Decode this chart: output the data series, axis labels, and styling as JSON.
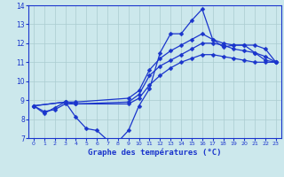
{
  "title": "Graphe des températures (°C)",
  "background_color": "#cce8ec",
  "grid_color": "#aaccd0",
  "line_color": "#1a35cc",
  "xlim": [
    -0.5,
    23.5
  ],
  "ylim": [
    7,
    14
  ],
  "xticks": [
    0,
    1,
    2,
    3,
    4,
    5,
    6,
    7,
    8,
    9,
    10,
    11,
    12,
    13,
    14,
    15,
    16,
    17,
    18,
    19,
    20,
    21,
    22,
    23
  ],
  "yticks": [
    7,
    8,
    9,
    10,
    11,
    12,
    13,
    14
  ],
  "series": [
    {
      "x": [
        0,
        1,
        2,
        3,
        4,
        5,
        6,
        7,
        8,
        9,
        10,
        11,
        12,
        13,
        14,
        15,
        16,
        17,
        18,
        19,
        20,
        21,
        22,
        23
      ],
      "y": [
        8.7,
        8.3,
        8.6,
        8.9,
        8.1,
        7.5,
        7.4,
        6.9,
        6.8,
        7.4,
        8.7,
        9.6,
        11.5,
        12.5,
        12.5,
        13.2,
        13.8,
        12.2,
        11.8,
        11.9,
        11.9,
        11.5,
        11.1,
        11.0
      ]
    },
    {
      "x": [
        0,
        3,
        4,
        9,
        10,
        11,
        12,
        13,
        14,
        15,
        16,
        17,
        18,
        19,
        20,
        21,
        22,
        23
      ],
      "y": [
        8.7,
        8.9,
        8.9,
        9.1,
        9.5,
        10.6,
        11.2,
        11.6,
        11.9,
        12.2,
        12.5,
        12.2,
        12.0,
        11.9,
        11.9,
        11.9,
        11.7,
        11.0
      ]
    },
    {
      "x": [
        0,
        3,
        4,
        9,
        10,
        11,
        12,
        13,
        14,
        15,
        16,
        17,
        18,
        19,
        20,
        21,
        22,
        23
      ],
      "y": [
        8.7,
        8.9,
        8.8,
        8.9,
        9.3,
        10.3,
        10.8,
        11.1,
        11.4,
        11.7,
        12.0,
        12.0,
        11.9,
        11.7,
        11.6,
        11.5,
        11.3,
        11.0
      ]
    },
    {
      "x": [
        0,
        1,
        2,
        3,
        4,
        9,
        10,
        11,
        12,
        13,
        14,
        15,
        16,
        17,
        18,
        19,
        20,
        21,
        22,
        23
      ],
      "y": [
        8.7,
        8.4,
        8.5,
        8.8,
        8.8,
        8.8,
        9.1,
        9.8,
        10.3,
        10.7,
        11.0,
        11.2,
        11.4,
        11.4,
        11.3,
        11.2,
        11.1,
        11.0,
        11.0,
        11.0
      ]
    }
  ]
}
